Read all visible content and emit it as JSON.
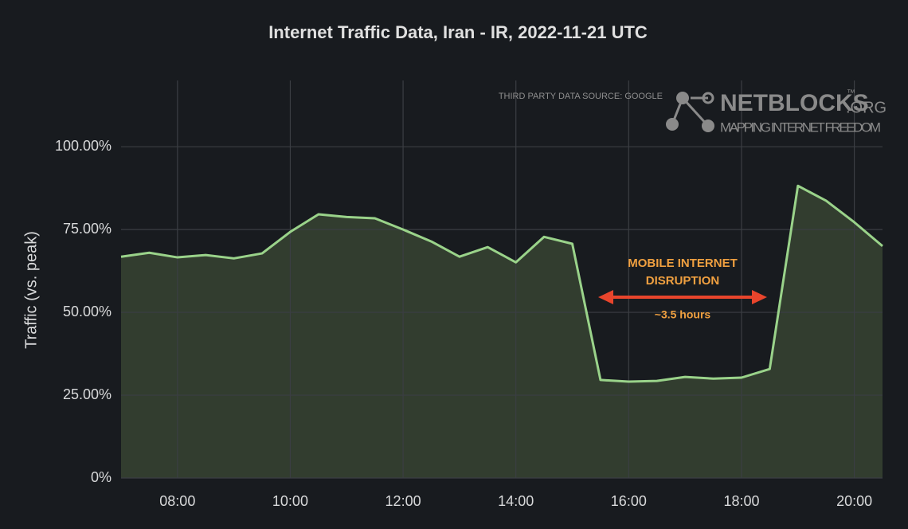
{
  "chart_data": {
    "type": "area",
    "title": "Internet Traffic Data, Iran - IR, 2022-11-21 UTC",
    "y_label": "Traffic (vs. peak)",
    "source": "THIRD PARTY DATA SOURCE: GOOGLE",
    "logo": {
      "name": "NETBLOCKS",
      "trademark": "™",
      "suffix": ".ORG",
      "tagline": "MAPPING INTERNET FREEDOM"
    },
    "annotation": {
      "lines": [
        "MOBILE INTERNET",
        "DISRUPTION"
      ],
      "duration": "~3.5 hours"
    },
    "x": [
      7,
      7.5,
      8,
      8.5,
      9,
      9.5,
      10,
      10.5,
      11,
      11.5,
      12,
      12.5,
      13,
      13.5,
      14,
      14.5,
      15,
      15.5,
      16,
      16.5,
      17,
      17.5,
      18,
      18.5,
      19,
      19.5,
      20,
      20.5
    ],
    "values": [
      66.8,
      68.0,
      66.6,
      67.3,
      66.3,
      67.8,
      74.3,
      79.6,
      78.8,
      78.4,
      75.0,
      71.4,
      66.8,
      69.7,
      65.1,
      72.8,
      70.7,
      29.6,
      29.1,
      29.3,
      30.5,
      30.0,
      30.3,
      32.9,
      88.2,
      83.7,
      77.2,
      70.0
    ],
    "color": "#9ad38a",
    "fill": "#323d2f",
    "xlim": [
      7,
      20.5
    ],
    "xticks": [
      {
        "value": 8,
        "label": "08:00"
      },
      {
        "value": 10,
        "label": "10:00"
      },
      {
        "value": 12,
        "label": "12:00"
      },
      {
        "value": 14,
        "label": "14:00"
      },
      {
        "value": 16,
        "label": "16:00"
      },
      {
        "value": 18,
        "label": "18:00"
      },
      {
        "value": 20,
        "label": "20:00"
      }
    ],
    "ylim": [
      0,
      120
    ],
    "yticks": [
      {
        "value": 0,
        "label": "0%"
      },
      {
        "value": 25,
        "label": "25.00%"
      },
      {
        "value": 50,
        "label": "50.00%"
      },
      {
        "value": 75,
        "label": "75.00%"
      },
      {
        "value": 100,
        "label": "100.00%"
      }
    ],
    "grid": true
  }
}
